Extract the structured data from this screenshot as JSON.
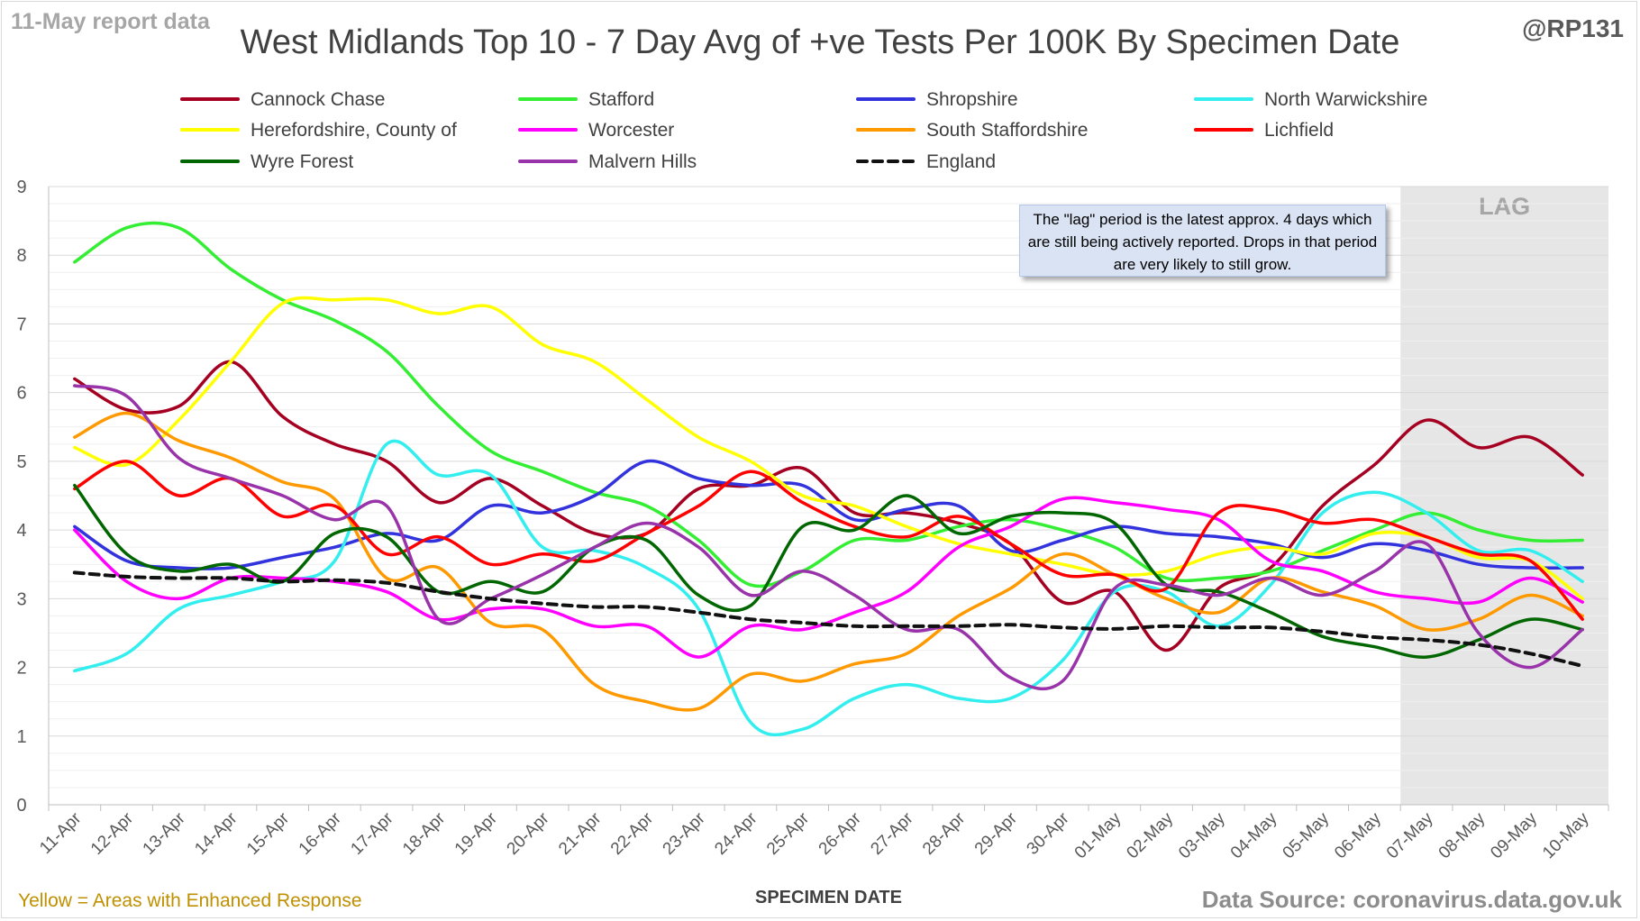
{
  "header": {
    "report_label": "11-May report data",
    "handle": "@RP131",
    "title": "West Midlands Top 10 - 7 Day Avg of +ve Tests Per 100K By Specimen Date"
  },
  "footer": {
    "left_note": "Yellow = Areas with Enhanced Response",
    "source": "Data Source: coronavirus.data.gov.uk"
  },
  "annotation": {
    "text": "The \"lag\" period is the latest approx. 4 days which are still being actively reported.  Drops in that period are very likely to still grow."
  },
  "chart_data": {
    "type": "line",
    "title": "West Midlands Top 10 - 7 Day Avg of +ve Tests Per 100K By Specimen Date",
    "xlabel": "SPECIMEN DATE",
    "ylabel": "",
    "ylim": [
      0,
      9
    ],
    "yticks": [
      0,
      1,
      2,
      3,
      4,
      5,
      6,
      7,
      8,
      9
    ],
    "grid": true,
    "legend_position": "top",
    "lag_band": {
      "label": "LAG",
      "from": "07-May",
      "to": "10-May"
    },
    "categories": [
      "11-Apr",
      "12-Apr",
      "13-Apr",
      "14-Apr",
      "15-Apr",
      "16-Apr",
      "17-Apr",
      "18-Apr",
      "19-Apr",
      "20-Apr",
      "21-Apr",
      "22-Apr",
      "23-Apr",
      "24-Apr",
      "25-Apr",
      "26-Apr",
      "27-Apr",
      "28-Apr",
      "29-Apr",
      "30-Apr",
      "01-May",
      "02-May",
      "03-May",
      "04-May",
      "05-May",
      "06-May",
      "07-May",
      "08-May",
      "09-May",
      "10-May"
    ],
    "series": [
      {
        "name": "Cannock Chase",
        "color": "#a50021",
        "dash": false,
        "values": [
          6.2,
          5.75,
          5.8,
          6.45,
          5.65,
          5.25,
          5.0,
          4.4,
          4.75,
          4.35,
          3.95,
          3.95,
          4.6,
          4.65,
          4.9,
          4.25,
          4.25,
          4.1,
          3.8,
          2.95,
          3.1,
          2.25,
          3.15,
          3.45,
          4.35,
          4.95,
          5.6,
          5.2,
          5.35,
          4.8
        ]
      },
      {
        "name": "Stafford",
        "color": "#33ee33",
        "dash": false,
        "values": [
          7.9,
          8.4,
          8.4,
          7.8,
          7.35,
          7.05,
          6.6,
          5.8,
          5.15,
          4.85,
          4.55,
          4.35,
          3.85,
          3.2,
          3.4,
          3.85,
          3.85,
          4.05,
          4.15,
          4.0,
          3.75,
          3.3,
          3.3,
          3.4,
          3.7,
          4.0,
          4.25,
          4.0,
          3.85,
          3.85
        ]
      },
      {
        "name": "Shropshire",
        "color": "#3333dd",
        "dash": false,
        "values": [
          4.05,
          3.55,
          3.45,
          3.45,
          3.6,
          3.75,
          3.95,
          3.85,
          4.35,
          4.25,
          4.5,
          5.0,
          4.75,
          4.65,
          4.65,
          4.15,
          4.3,
          4.35,
          3.7,
          3.85,
          4.05,
          3.95,
          3.9,
          3.8,
          3.6,
          3.8,
          3.7,
          3.5,
          3.45,
          3.45
        ]
      },
      {
        "name": "North Warwickshire",
        "color": "#33eeee",
        "dash": false,
        "values": [
          1.95,
          2.2,
          2.85,
          3.05,
          3.25,
          3.55,
          5.25,
          4.8,
          4.8,
          3.75,
          3.7,
          3.45,
          2.85,
          1.2,
          1.1,
          1.55,
          1.75,
          1.55,
          1.55,
          2.1,
          3.1,
          3.1,
          2.6,
          3.2,
          4.25,
          4.55,
          4.25,
          3.7,
          3.7,
          3.25
        ]
      },
      {
        "name": "Herefordshire, County of",
        "color": "#ffff00",
        "dash": false,
        "values": [
          5.2,
          4.95,
          5.6,
          6.45,
          7.3,
          7.35,
          7.35,
          7.15,
          7.25,
          6.7,
          6.45,
          5.9,
          5.35,
          5.0,
          4.5,
          4.35,
          4.05,
          3.8,
          3.65,
          3.5,
          3.35,
          3.4,
          3.65,
          3.75,
          3.65,
          3.95,
          3.9,
          3.6,
          3.55,
          3.0
        ]
      },
      {
        "name": "Worcester",
        "color": "#ff00ff",
        "dash": false,
        "values": [
          4.0,
          3.25,
          3.0,
          3.3,
          3.3,
          3.25,
          3.1,
          2.7,
          2.85,
          2.85,
          2.6,
          2.6,
          2.15,
          2.6,
          2.55,
          2.8,
          3.1,
          3.75,
          4.05,
          4.45,
          4.4,
          4.3,
          4.15,
          3.55,
          3.4,
          3.1,
          3.0,
          2.95,
          3.3,
          2.95
        ]
      },
      {
        "name": "South Staffordshire",
        "color": "#ff9900",
        "dash": false,
        "values": [
          5.35,
          5.7,
          5.3,
          5.05,
          4.7,
          4.45,
          3.3,
          3.45,
          2.65,
          2.55,
          1.75,
          1.5,
          1.4,
          1.9,
          1.8,
          2.05,
          2.2,
          2.75,
          3.15,
          3.65,
          3.35,
          3.0,
          2.8,
          3.3,
          3.1,
          2.9,
          2.55,
          2.7,
          3.05,
          2.75
        ]
      },
      {
        "name": "Lichfield",
        "color": "#ff0000",
        "dash": false,
        "values": [
          4.6,
          5.0,
          4.5,
          4.75,
          4.2,
          4.35,
          3.65,
          3.9,
          3.5,
          3.65,
          3.55,
          3.95,
          4.35,
          4.85,
          4.4,
          4.05,
          3.9,
          4.2,
          3.8,
          3.35,
          3.35,
          3.15,
          4.25,
          4.3,
          4.1,
          4.15,
          3.9,
          3.65,
          3.55,
          2.7
        ]
      },
      {
        "name": "Wyre Forest",
        "color": "#006600",
        "dash": false,
        "values": [
          4.65,
          3.65,
          3.4,
          3.5,
          3.25,
          3.95,
          3.9,
          3.1,
          3.25,
          3.1,
          3.75,
          3.85,
          3.05,
          2.9,
          4.05,
          4.0,
          4.5,
          3.95,
          4.2,
          4.25,
          4.1,
          3.2,
          3.1,
          2.8,
          2.45,
          2.3,
          2.15,
          2.4,
          2.7,
          2.55
        ]
      },
      {
        "name": "Malvern Hills",
        "color": "#9933aa",
        "dash": false,
        "values": [
          6.1,
          5.95,
          5.05,
          4.75,
          4.5,
          4.15,
          4.35,
          2.7,
          3.0,
          3.35,
          3.75,
          4.1,
          3.75,
          3.05,
          3.4,
          3.05,
          2.55,
          2.55,
          1.85,
          1.8,
          3.15,
          3.2,
          3.05,
          3.3,
          3.05,
          3.4,
          3.8,
          2.5,
          2.0,
          2.55
        ]
      },
      {
        "name": "England",
        "color": "#111111",
        "dash": true,
        "values": [
          3.38,
          3.32,
          3.3,
          3.3,
          3.25,
          3.27,
          3.23,
          3.1,
          3.0,
          2.93,
          2.88,
          2.88,
          2.8,
          2.7,
          2.65,
          2.6,
          2.6,
          2.6,
          2.62,
          2.58,
          2.56,
          2.6,
          2.58,
          2.58,
          2.52,
          2.44,
          2.4,
          2.33,
          2.2,
          2.02
        ]
      }
    ]
  }
}
